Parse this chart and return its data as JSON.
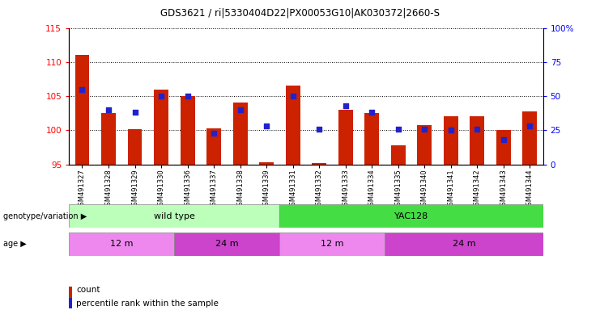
{
  "title": "GDS3621 / ri|5330404D22|PX00053G10|AK030372|2660-S",
  "samples": [
    "GSM491327",
    "GSM491328",
    "GSM491329",
    "GSM491330",
    "GSM491336",
    "GSM491337",
    "GSM491338",
    "GSM491339",
    "GSM491331",
    "GSM491332",
    "GSM491333",
    "GSM491334",
    "GSM491335",
    "GSM491340",
    "GSM491341",
    "GSM491342",
    "GSM491343",
    "GSM491344"
  ],
  "counts": [
    111.0,
    102.5,
    100.2,
    106.0,
    105.0,
    100.3,
    104.0,
    95.3,
    106.5,
    95.2,
    103.0,
    102.5,
    97.8,
    100.8,
    102.0,
    102.0,
    100.0,
    102.7
  ],
  "percentiles": [
    55,
    40,
    38,
    50,
    50,
    23,
    40,
    28,
    50,
    26,
    43,
    38,
    26,
    26,
    25,
    26,
    18,
    28
  ],
  "ylim_left": [
    95,
    115
  ],
  "ylim_right": [
    0,
    100
  ],
  "yticks_left": [
    95,
    100,
    105,
    110,
    115
  ],
  "yticks_right": [
    0,
    25,
    50,
    75,
    100
  ],
  "bar_color": "#cc2200",
  "dot_color": "#2222cc",
  "genotype_groups": [
    {
      "label": "wild type",
      "start": 0,
      "end": 8,
      "color": "#bbffbb"
    },
    {
      "label": "YAC128",
      "start": 8,
      "end": 18,
      "color": "#44dd44"
    }
  ],
  "age_groups": [
    {
      "label": "12 m",
      "start": 0,
      "end": 4,
      "color": "#ee88ee"
    },
    {
      "label": "24 m",
      "start": 4,
      "end": 8,
      "color": "#cc44cc"
    },
    {
      "label": "12 m",
      "start": 8,
      "end": 12,
      "color": "#ee88ee"
    },
    {
      "label": "24 m",
      "start": 12,
      "end": 18,
      "color": "#cc44cc"
    }
  ],
  "bar_width": 0.55,
  "baseline": 95
}
